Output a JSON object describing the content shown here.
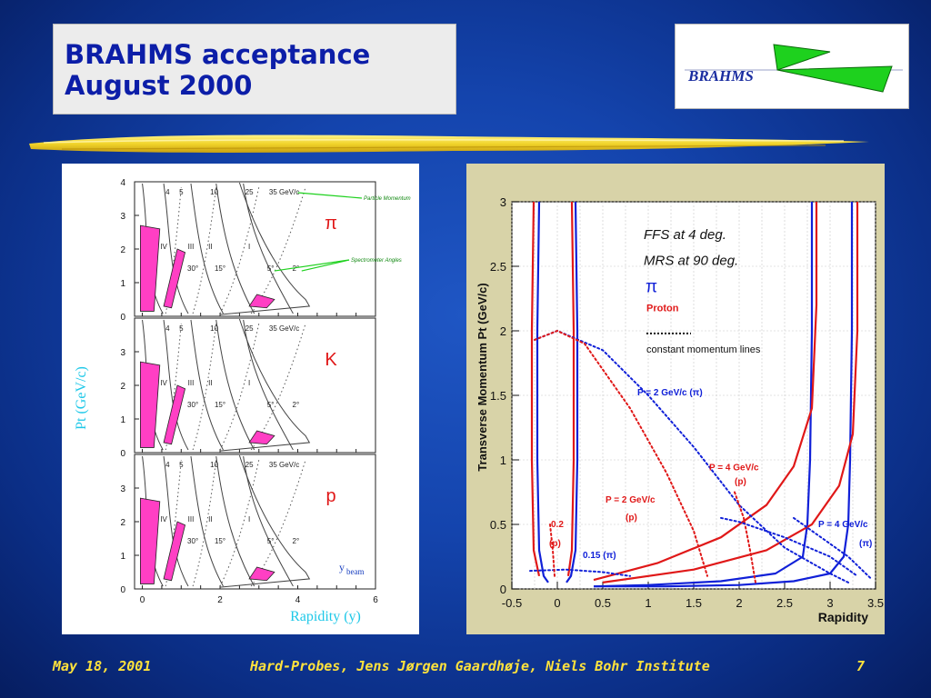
{
  "slide": {
    "title_line1": "BRAHMS acceptance",
    "title_line2": "August 2000",
    "logo_text": "BRAHMS"
  },
  "footer": {
    "date": "May 18, 2001",
    "talk": "Hard-Probes, Jens Jørgen Gaardhøje, Niels Bohr Institute",
    "page": "7"
  },
  "colors": {
    "title": "#0c1ea8",
    "footer": "#ffe23c",
    "magenta": "#ff3fc4",
    "red": "#e01818",
    "blue": "#1020d8"
  },
  "chart_data": [
    {
      "type": "line",
      "ylabel": "Pt (GeV/c)",
      "xlabel": "Rapidity (y)",
      "xticks": [
        "0",
        "2",
        "4",
        "6"
      ],
      "yticks": [
        "0",
        "1",
        "2",
        "3",
        "4"
      ],
      "xlim": [
        -0.2,
        6
      ],
      "ylim": [
        0,
        4
      ],
      "momentum_labels": [
        "4",
        "5",
        "10",
        "25",
        "35 GeV/c"
      ],
      "setting_labels": [
        "IV",
        "III",
        "II",
        "I"
      ],
      "angle_labels": [
        "30°",
        "15°",
        "5°",
        "2°"
      ],
      "panels": [
        {
          "particle": "π",
          "annotations": [
            "Particle Momentum",
            "Spectrometer Angles"
          ]
        },
        {
          "particle": "K"
        },
        {
          "particle": "p"
        }
      ],
      "ybeam_label": "y",
      "ybeam_sub": "beam",
      "caption": "Rapidity (y)"
    },
    {
      "type": "line",
      "xlabel": "Rapidity",
      "ylabel": "Transverse Momentum Pt (GeV/c)",
      "xticks": [
        "-0.5",
        "0",
        "0.5",
        "1",
        "1.5",
        "2",
        "2.5",
        "3",
        "3.5"
      ],
      "yticks": [
        "0",
        "0.5",
        "1",
        "1.5",
        "2",
        "2.5",
        "3"
      ],
      "xlim": [
        -0.5,
        3.5
      ],
      "ylim": [
        0,
        3
      ],
      "legend": {
        "line1": "FFS at 4 deg.",
        "line2": "MRS at 90 deg.",
        "particle": "π",
        "proton": "Proton",
        "dots": "constant momentum lines"
      },
      "labels": {
        "p2pi": "P = 2 GeV/c (π)",
        "p4p_a": "P = 4 GeV/c",
        "p4p_b": "(p)",
        "p2p_a": "P = 2 GeV/c",
        "p2p_b": "(p)",
        "p4pi_a": "P = 4 GeV/c",
        "p4pi_b": "(π)",
        "p02_a": "0.2",
        "p02_b": "(p)",
        "p015": "0.15 (π)"
      },
      "series": [
        {
          "name": "FFS pion",
          "color": "#1020d8",
          "points": [
            [
              3.24,
              3.0
            ],
            [
              3.24,
              2.0
            ],
            [
              3.22,
              1.0
            ],
            [
              3.2,
              0.5
            ],
            [
              3.15,
              0.25
            ],
            [
              3.0,
              0.12
            ],
            [
              2.6,
              0.06
            ],
            [
              2.0,
              0.03
            ],
            [
              1.2,
              0.02
            ],
            [
              0.4,
              0.02
            ]
          ]
        },
        {
          "name": "FFS pion inner",
          "color": "#1020d8",
          "points": [
            [
              2.8,
              3.0
            ],
            [
              2.8,
              2.0
            ],
            [
              2.78,
              1.0
            ],
            [
              2.75,
              0.5
            ],
            [
              2.7,
              0.25
            ],
            [
              2.4,
              0.12
            ],
            [
              1.8,
              0.06
            ],
            [
              1.0,
              0.03
            ],
            [
              0.4,
              0.02
            ]
          ]
        },
        {
          "name": "FFS proton",
          "color": "#e01818",
          "points": [
            [
              3.3,
              3.0
            ],
            [
              3.3,
              2.0
            ],
            [
              3.25,
              1.2
            ],
            [
              3.1,
              0.8
            ],
            [
              2.8,
              0.5
            ],
            [
              2.3,
              0.3
            ],
            [
              1.5,
              0.15
            ],
            [
              0.5,
              0.05
            ]
          ]
        },
        {
          "name": "FFS proton inner",
          "color": "#e01818",
          "points": [
            [
              2.85,
              3.0
            ],
            [
              2.85,
              2.2
            ],
            [
              2.8,
              1.4
            ],
            [
              2.6,
              0.95
            ],
            [
              2.3,
              0.65
            ],
            [
              1.8,
              0.4
            ],
            [
              1.1,
              0.2
            ],
            [
              0.4,
              0.07
            ]
          ]
        },
        {
          "name": "MRS pion left",
          "color": "#1020d8",
          "points": [
            [
              -0.2,
              3.0
            ],
            [
              -0.22,
              2.0
            ],
            [
              -0.22,
              1.0
            ],
            [
              -0.2,
              0.3
            ],
            [
              -0.15,
              0.1
            ],
            [
              -0.1,
              0.05
            ]
          ]
        },
        {
          "name": "MRS pion right",
          "color": "#1020d8",
          "points": [
            [
              0.2,
              3.0
            ],
            [
              0.22,
              2.0
            ],
            [
              0.22,
              1.0
            ],
            [
              0.2,
              0.3
            ],
            [
              0.15,
              0.1
            ],
            [
              0.1,
              0.05
            ]
          ]
        },
        {
          "name": "MRS proton left",
          "color": "#e01818",
          "points": [
            [
              -0.26,
              3.0
            ],
            [
              -0.28,
              2.0
            ],
            [
              -0.28,
              1.0
            ],
            [
              -0.26,
              0.3
            ],
            [
              -0.2,
              0.1
            ]
          ]
        },
        {
          "name": "MRS proton right",
          "color": "#e01818",
          "points": [
            [
              0.16,
              3.0
            ],
            [
              0.18,
              2.0
            ],
            [
              0.18,
              1.0
            ],
            [
              0.16,
              0.3
            ],
            [
              0.12,
              0.1
            ]
          ]
        }
      ]
    }
  ]
}
